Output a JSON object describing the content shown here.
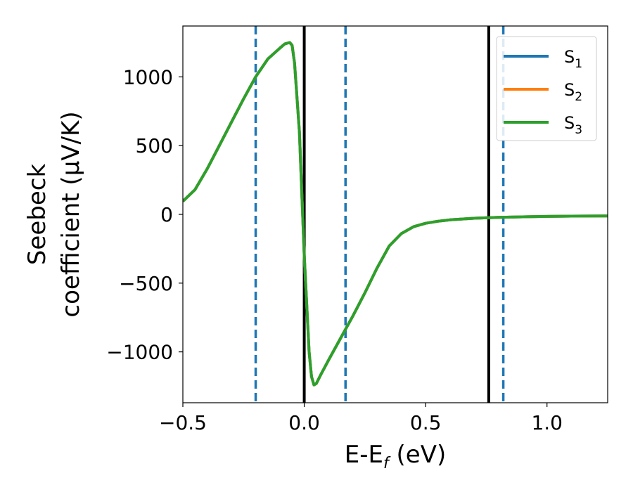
{
  "chart_data": {
    "type": "line",
    "xlabel": "E-E",
    "xlabel_sub": "f",
    "xlabel_unit": " (eV)",
    "ylabel_line1": "Seebeck",
    "ylabel_line2": "coefficient  (μV/K)",
    "xlim": [
      -0.5,
      1.25
    ],
    "ylim": [
      -1370,
      1370
    ],
    "x_ticks": [
      -0.5,
      0.0,
      0.5,
      1.0
    ],
    "x_tick_labels": [
      "−0.5",
      "0.0",
      "0.5",
      "1.0"
    ],
    "y_ticks": [
      1000,
      500,
      0,
      -500,
      -1000
    ],
    "y_tick_labels": [
      "1000",
      "500",
      "0",
      "−500",
      "−1000"
    ],
    "grid": false,
    "legend_position": "top-right",
    "series": [
      {
        "name": "S",
        "name_sub": "1",
        "color": "#1f77b4",
        "x": [
          -0.5,
          -0.45,
          -0.4,
          -0.35,
          -0.3,
          -0.25,
          -0.2,
          -0.15,
          -0.1,
          -0.08,
          -0.06,
          -0.05,
          -0.04,
          -0.02,
          0.0,
          0.02,
          0.03,
          0.04,
          0.05,
          0.07,
          0.1,
          0.15,
          0.2,
          0.25,
          0.3,
          0.35,
          0.4,
          0.45,
          0.5,
          0.55,
          0.6,
          0.7,
          0.8,
          0.9,
          1.0,
          1.1,
          1.25
        ],
        "y": [
          95,
          180,
          330,
          500,
          670,
          840,
          1000,
          1130,
          1210,
          1240,
          1250,
          1230,
          1100,
          600,
          -300,
          -1000,
          -1180,
          -1240,
          -1230,
          -1160,
          -1060,
          -900,
          -740,
          -570,
          -390,
          -230,
          -140,
          -90,
          -65,
          -50,
          -40,
          -28,
          -22,
          -18,
          -15,
          -13,
          -12
        ]
      },
      {
        "name": "S",
        "name_sub": "2",
        "color": "#ff7f0e",
        "x": [
          -0.5,
          -0.45,
          -0.4,
          -0.35,
          -0.3,
          -0.25,
          -0.2,
          -0.15,
          -0.1,
          -0.08,
          -0.06,
          -0.05,
          -0.04,
          -0.02,
          0.0,
          0.02,
          0.03,
          0.04,
          0.05,
          0.07,
          0.1,
          0.15,
          0.2,
          0.25,
          0.3,
          0.35,
          0.4,
          0.45,
          0.5,
          0.55,
          0.6,
          0.7,
          0.8,
          0.9,
          1.0,
          1.1,
          1.25
        ],
        "y": [
          95,
          180,
          330,
          500,
          670,
          840,
          1000,
          1130,
          1210,
          1240,
          1250,
          1230,
          1100,
          600,
          -300,
          -1000,
          -1180,
          -1240,
          -1230,
          -1160,
          -1060,
          -900,
          -740,
          -570,
          -390,
          -230,
          -140,
          -90,
          -65,
          -50,
          -40,
          -28,
          -22,
          -18,
          -15,
          -13,
          -12
        ]
      },
      {
        "name": "S",
        "name_sub": "3",
        "color": "#2ca02c",
        "x": [
          -0.5,
          -0.45,
          -0.4,
          -0.35,
          -0.3,
          -0.25,
          -0.2,
          -0.15,
          -0.1,
          -0.08,
          -0.06,
          -0.05,
          -0.04,
          -0.02,
          0.0,
          0.02,
          0.03,
          0.04,
          0.05,
          0.07,
          0.1,
          0.15,
          0.2,
          0.25,
          0.3,
          0.35,
          0.4,
          0.45,
          0.5,
          0.55,
          0.6,
          0.7,
          0.8,
          0.9,
          1.0,
          1.1,
          1.25
        ],
        "y": [
          95,
          180,
          330,
          500,
          670,
          840,
          1000,
          1130,
          1210,
          1240,
          1250,
          1230,
          1100,
          600,
          -300,
          -1000,
          -1180,
          -1240,
          -1230,
          -1160,
          -1060,
          -900,
          -740,
          -570,
          -390,
          -230,
          -140,
          -90,
          -65,
          -50,
          -40,
          -28,
          -22,
          -18,
          -15,
          -13,
          -12
        ]
      }
    ],
    "vlines": [
      {
        "x": -0.2,
        "style": "dashed",
        "color": "#1f77b4"
      },
      {
        "x": 0.0,
        "style": "solid",
        "color": "#000000"
      },
      {
        "x": 0.17,
        "style": "dashed",
        "color": "#1f77b4"
      },
      {
        "x": 0.76,
        "style": "solid",
        "color": "#000000"
      },
      {
        "x": 0.82,
        "style": "dashed",
        "color": "#1f77b4"
      }
    ]
  }
}
